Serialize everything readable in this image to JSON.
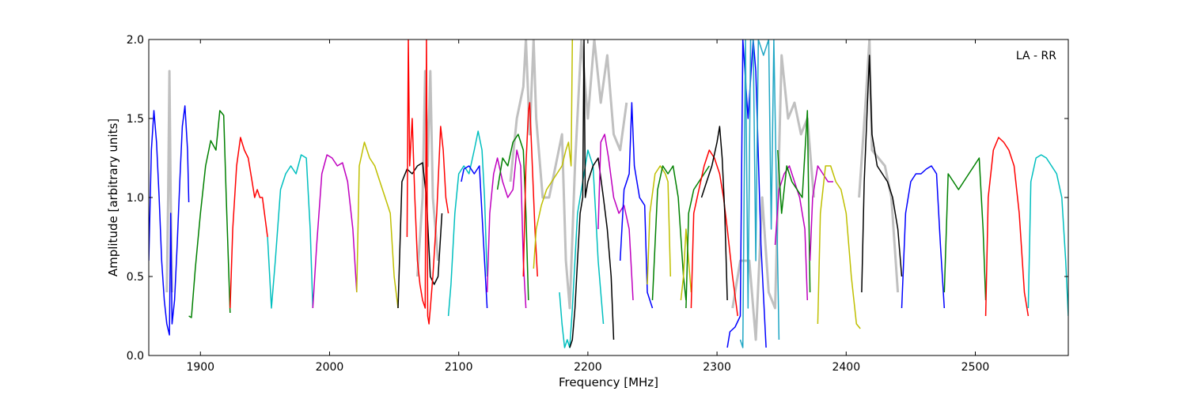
{
  "chart_data": {
    "type": "line",
    "title": "",
    "xlabel": "Frequency [MHz]",
    "ylabel": "Amplitude [arbitrary units]",
    "annotation": "LA - RR",
    "xlim": [
      1860,
      2572
    ],
    "ylim": [
      0.0,
      2.0
    ],
    "xticks": [
      1900,
      2000,
      2100,
      2200,
      2300,
      2400,
      2500
    ],
    "yticks": [
      0.0,
      0.5,
      1.0,
      1.5,
      2.0
    ],
    "xtick_labels": [
      "1900",
      "2000",
      "2100",
      "2200",
      "2300",
      "2400",
      "2500"
    ],
    "ytick_labels": [
      "0.0",
      "0.5",
      "1.0",
      "1.5",
      "2.0"
    ],
    "grid": false,
    "background_color": "#c0c0c0",
    "background_series": [
      {
        "x": [
          1874,
          1875,
          1876,
          1877,
          1878
        ],
        "y": [
          0.4,
          1.0,
          1.8,
          1.0,
          0.4
        ]
      },
      {
        "x": [
          2068,
          2072,
          2074,
          2076,
          2078,
          2080,
          2084
        ],
        "y": [
          0.5,
          1.0,
          1.8,
          1.2,
          1.8,
          1.0,
          0.6
        ]
      },
      {
        "x": [
          2140,
          2145,
          2150,
          2152,
          2155,
          2158,
          2160,
          2165,
          2170,
          2175,
          2180,
          2183,
          2186,
          2190,
          2195,
          2200,
          2205,
          2210,
          2215,
          2220,
          2225,
          2230
        ],
        "y": [
          1.1,
          1.5,
          1.7,
          2.0,
          1.4,
          2.0,
          1.5,
          1.0,
          1.0,
          1.2,
          1.4,
          0.6,
          0.3,
          1.2,
          2.0,
          1.5,
          2.0,
          1.6,
          1.9,
          1.4,
          1.3,
          1.6
        ]
      },
      {
        "x": [
          2312,
          2318,
          2325,
          2330,
          2335,
          2340,
          2345,
          2350,
          2355,
          2360,
          2365,
          2370,
          2375
        ],
        "y": [
          0.3,
          0.6,
          0.6,
          0.1,
          1.0,
          0.4,
          0.3,
          1.9,
          1.5,
          1.6,
          1.4,
          1.5,
          1.0
        ]
      },
      {
        "x": [
          2410,
          2415,
          2418,
          2420,
          2425,
          2430,
          2435,
          2440
        ],
        "y": [
          1.0,
          1.6,
          2.0,
          1.3,
          1.25,
          1.2,
          1.0,
          0.4
        ]
      }
    ],
    "series": [
      {
        "color": "#0000ff",
        "x": [
          1860,
          1862,
          1864,
          1866,
          1868,
          1870,
          1872,
          1874,
          1876,
          1877,
          1878,
          1880,
          1882,
          1884,
          1886,
          1888,
          1890,
          1891
        ],
        "y": [
          0.6,
          1.3,
          1.55,
          1.35,
          1.0,
          0.6,
          0.35,
          0.2,
          0.13,
          0.9,
          0.2,
          0.35,
          0.7,
          1.1,
          1.45,
          1.58,
          1.3,
          0.97
        ]
      },
      {
        "color": "#008000",
        "x": [
          1891,
          1893,
          1896,
          1900,
          1904,
          1908,
          1912,
          1915,
          1918,
          1920,
          1923
        ],
        "y": [
          0.25,
          0.24,
          0.55,
          0.9,
          1.2,
          1.36,
          1.3,
          1.55,
          1.52,
          1.0,
          0.27
        ]
      },
      {
        "color": "#ff0000",
        "x": [
          1923,
          1925,
          1928,
          1931,
          1934,
          1937,
          1940,
          1942,
          1944,
          1946,
          1948,
          1952
        ],
        "y": [
          0.3,
          0.8,
          1.2,
          1.38,
          1.3,
          1.25,
          1.1,
          1.0,
          1.05,
          1.0,
          1.0,
          0.75
        ]
      },
      {
        "color": "#00bfbf",
        "x": [
          1952,
          1955,
          1958,
          1962,
          1966,
          1970,
          1974,
          1978,
          1982,
          1985,
          1987
        ],
        "y": [
          0.75,
          0.3,
          0.6,
          1.05,
          1.15,
          1.2,
          1.15,
          1.27,
          1.25,
          0.8,
          0.3
        ]
      },
      {
        "color": "#bf00bf",
        "x": [
          1987,
          1990,
          1994,
          1998,
          2002,
          2006,
          2010,
          2014,
          2018,
          2021
        ],
        "y": [
          0.3,
          0.7,
          1.15,
          1.27,
          1.25,
          1.2,
          1.22,
          1.1,
          0.8,
          0.4
        ]
      },
      {
        "color": "#bfbf00",
        "x": [
          2021,
          2023,
          2027,
          2031,
          2035,
          2039,
          2043,
          2047,
          2050,
          2053
        ],
        "y": [
          0.4,
          1.2,
          1.35,
          1.25,
          1.2,
          1.1,
          1.0,
          0.9,
          0.5,
          0.3
        ]
      },
      {
        "color": "#000000",
        "x": [
          2053,
          2056,
          2060,
          2064,
          2068,
          2072,
          2075,
          2078,
          2081,
          2084,
          2087
        ],
        "y": [
          0.3,
          1.1,
          1.18,
          1.15,
          1.2,
          1.22,
          1.0,
          0.5,
          0.45,
          0.5,
          0.9
        ]
      },
      {
        "color": "#ff0000",
        "x": [
          2060,
          2061,
          2062,
          2064,
          2066,
          2068,
          2070,
          2072,
          2074,
          2075,
          2076,
          2077,
          2078,
          2080,
          2083,
          2086,
          2088,
          2090,
          2092
        ],
        "y": [
          0.75,
          2.0,
          1.2,
          1.5,
          1.0,
          0.6,
          0.45,
          0.35,
          0.3,
          2.0,
          0.25,
          0.2,
          0.3,
          0.5,
          0.9,
          1.45,
          1.3,
          1.0,
          0.9
        ]
      },
      {
        "color": "#00bfbf",
        "x": [
          2092,
          2094,
          2097,
          2100,
          2104,
          2108,
          2112,
          2115,
          2118,
          2120,
          2122
        ],
        "y": [
          0.25,
          0.45,
          0.9,
          1.15,
          1.2,
          1.15,
          1.3,
          1.42,
          1.3,
          1.0,
          0.5
        ]
      },
      {
        "color": "#0000ff",
        "x": [
          2102,
          2104,
          2108,
          2112,
          2116,
          2120,
          2122
        ],
        "y": [
          1.1,
          1.18,
          1.2,
          1.15,
          1.2,
          0.6,
          0.3
        ]
      },
      {
        "color": "#bf00bf",
        "x": [
          2122,
          2124,
          2127,
          2130,
          2134,
          2138,
          2142,
          2145,
          2148,
          2150,
          2152
        ],
        "y": [
          0.4,
          0.9,
          1.15,
          1.25,
          1.1,
          1.0,
          1.05,
          1.3,
          1.2,
          0.6,
          0.3
        ]
      },
      {
        "color": "#008000",
        "x": [
          2130,
          2134,
          2138,
          2142,
          2146,
          2150,
          2152,
          2154
        ],
        "y": [
          1.05,
          1.25,
          1.2,
          1.35,
          1.4,
          1.3,
          0.9,
          0.35
        ]
      },
      {
        "color": "#ff0000",
        "x": [
          2150,
          2152,
          2154,
          2155,
          2157,
          2159,
          2161
        ],
        "y": [
          0.5,
          1.2,
          1.55,
          1.6,
          1.2,
          0.8,
          0.5
        ]
      },
      {
        "color": "#bfbf00",
        "x": [
          2158,
          2160,
          2164,
          2168,
          2172,
          2176,
          2180,
          2183,
          2185,
          2187,
          2188
        ],
        "y": [
          0.55,
          0.8,
          0.95,
          1.05,
          1.1,
          1.15,
          1.2,
          1.3,
          1.35,
          1.2,
          2.0
        ]
      },
      {
        "color": "#00bfbf",
        "x": [
          2178,
          2180,
          2182,
          2184,
          2186,
          2188,
          2192,
          2196,
          2200,
          2204,
          2206,
          2208,
          2212
        ],
        "y": [
          0.4,
          0.2,
          0.05,
          0.1,
          0.05,
          0.3,
          0.9,
          1.1,
          1.3,
          1.2,
          0.9,
          0.6,
          0.2
        ]
      },
      {
        "color": "#000000",
        "x": [
          2186,
          2188,
          2190,
          2192,
          2194,
          2196,
          2197,
          2198,
          2200,
          2204,
          2208,
          2212,
          2215,
          2218,
          2220
        ],
        "y": [
          0.05,
          0.1,
          0.3,
          0.6,
          0.9,
          1.0,
          2.0,
          1.0,
          1.1,
          1.2,
          1.25,
          1.0,
          0.8,
          0.5,
          0.1
        ]
      },
      {
        "color": "#bf00bf",
        "x": [
          2208,
          2210,
          2213,
          2216,
          2220,
          2224,
          2228,
          2232,
          2235
        ],
        "y": [
          0.8,
          1.35,
          1.4,
          1.25,
          1.0,
          0.9,
          0.95,
          0.8,
          0.35
        ]
      },
      {
        "color": "#0000ff",
        "x": [
          2225,
          2228,
          2232,
          2234,
          2236,
          2240,
          2244,
          2246,
          2250
        ],
        "y": [
          0.6,
          1.05,
          1.15,
          1.6,
          1.2,
          1.0,
          0.95,
          0.4,
          0.3
        ]
      },
      {
        "color": "#bfbf00",
        "x": [
          2246,
          2248,
          2252,
          2256,
          2260,
          2262,
          2264
        ],
        "y": [
          0.45,
          0.9,
          1.15,
          1.2,
          1.15,
          1.1,
          0.5
        ]
      },
      {
        "color": "#008000",
        "x": [
          2250,
          2254,
          2258,
          2262,
          2266,
          2270,
          2274,
          2276
        ],
        "y": [
          0.35,
          1.05,
          1.2,
          1.15,
          1.2,
          1.0,
          0.5,
          0.35
        ]
      },
      {
        "color": "#bfbf00",
        "x": [
          2272,
          2274,
          2276,
          2278,
          2280
        ],
        "y": [
          0.35,
          0.5,
          0.8,
          0.6,
          0.4
        ]
      },
      {
        "color": "#008000",
        "x": [
          2276,
          2278,
          2282,
          2286,
          2290,
          2294
        ],
        "y": [
          0.3,
          0.9,
          1.05,
          1.1,
          1.15,
          1.2
        ]
      },
      {
        "color": "#ff0000",
        "x": [
          2280,
          2282,
          2286,
          2290,
          2294,
          2298,
          2302,
          2305,
          2308,
          2312,
          2316
        ],
        "y": [
          0.3,
          0.9,
          1.05,
          1.2,
          1.3,
          1.25,
          1.15,
          1.0,
          0.8,
          0.5,
          0.25
        ]
      },
      {
        "color": "#000000",
        "x": [
          2288,
          2292,
          2296,
          2300,
          2302,
          2304,
          2306,
          2308
        ],
        "y": [
          1.0,
          1.1,
          1.2,
          1.35,
          1.45,
          1.25,
          0.9,
          0.35
        ]
      },
      {
        "color": "#0000ff",
        "x": [
          2308,
          2310,
          2314,
          2318,
          2320,
          2324,
          2328,
          2330,
          2334,
          2338
        ],
        "y": [
          0.05,
          0.15,
          0.18,
          0.25,
          2.0,
          1.5,
          2.0,
          1.8,
          0.7,
          0.05
        ]
      },
      {
        "color": "#1fa6c4",
        "x": [
          2318,
          2320,
          2322,
          2324,
          2326,
          2328,
          2330,
          2332,
          2336,
          2340,
          2342,
          2344,
          2348
        ],
        "y": [
          0.1,
          0.05,
          2.0,
          0.3,
          2.0,
          2.0,
          0.6,
          2.0,
          1.9,
          2.0,
          0.8,
          2.0,
          0.1
        ]
      },
      {
        "color": "#bf00bf",
        "x": [
          2345,
          2348,
          2352,
          2356,
          2360,
          2364,
          2368,
          2370
        ],
        "y": [
          0.7,
          1.05,
          1.15,
          1.2,
          1.1,
          1.0,
          0.8,
          0.35
        ]
      },
      {
        "color": "#008000",
        "x": [
          2347,
          2350,
          2354,
          2358,
          2362,
          2366,
          2370,
          2372
        ],
        "y": [
          1.3,
          0.9,
          1.2,
          1.1,
          1.05,
          1.0,
          1.55,
          0.4
        ]
      },
      {
        "color": "#bf00bf",
        "x": [
          2372,
          2374,
          2378,
          2382,
          2386,
          2390
        ],
        "y": [
          0.6,
          1.0,
          1.2,
          1.15,
          1.1,
          1.1
        ]
      },
      {
        "color": "#bfbf00",
        "x": [
          2378,
          2380,
          2384,
          2388,
          2392,
          2396,
          2400,
          2404,
          2408,
          2411
        ],
        "y": [
          0.2,
          0.9,
          1.2,
          1.2,
          1.1,
          1.05,
          0.9,
          0.5,
          0.2,
          0.17
        ]
      },
      {
        "color": "#000000",
        "x": [
          2412,
          2414,
          2416,
          2418,
          2420,
          2424,
          2428,
          2432,
          2436,
          2440,
          2443
        ],
        "y": [
          0.4,
          1.1,
          1.5,
          1.9,
          1.4,
          1.2,
          1.15,
          1.1,
          1.0,
          0.8,
          0.5
        ]
      },
      {
        "color": "#0000ff",
        "x": [
          2443,
          2446,
          2450,
          2454,
          2458,
          2462,
          2466,
          2470,
          2473,
          2476
        ],
        "y": [
          0.3,
          0.9,
          1.1,
          1.15,
          1.15,
          1.18,
          1.2,
          1.15,
          0.7,
          0.3
        ]
      },
      {
        "color": "#008000",
        "x": [
          2476,
          2479,
          2483,
          2487,
          2491,
          2495,
          2499,
          2503,
          2506,
          2508
        ],
        "y": [
          0.4,
          1.15,
          1.1,
          1.05,
          1.1,
          1.15,
          1.2,
          1.25,
          0.8,
          0.35
        ]
      },
      {
        "color": "#ff0000",
        "x": [
          2508,
          2510,
          2514,
          2518,
          2522,
          2526,
          2530,
          2534,
          2538,
          2541
        ],
        "y": [
          0.25,
          1.0,
          1.3,
          1.38,
          1.35,
          1.3,
          1.2,
          0.9,
          0.4,
          0.25
        ]
      },
      {
        "color": "#00bfbf",
        "x": [
          2541,
          2543,
          2547,
          2551,
          2555,
          2559,
          2563,
          2567,
          2570,
          2572
        ],
        "y": [
          0.3,
          1.1,
          1.25,
          1.27,
          1.25,
          1.2,
          1.15,
          1.0,
          0.6,
          0.25
        ]
      }
    ]
  }
}
